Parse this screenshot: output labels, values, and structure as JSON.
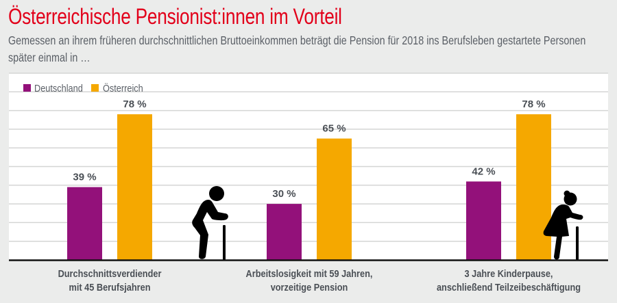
{
  "title": "Österreichische Pensionist:innen im Vorteil",
  "subtitle": "Gemessen an ihrem früheren durchschnittlichen Bruttoeinkommen beträgt die Pension für 2018 ins Berufsleben gestartete Personen später einmal in …",
  "chart_data": {
    "type": "bar",
    "categories": [
      [
        "Durchschnittsverdiender",
        "mit 45 Berufsjahren"
      ],
      [
        "Arbeitslosigkeit mit 59 Jahren,",
        "vorzeitige Pension"
      ],
      [
        "3 Jahre Kinderpause,",
        "anschließend Teilzeibeschäftigung"
      ]
    ],
    "series": [
      {
        "name": "Deutschland",
        "values": [
          39,
          30,
          42
        ],
        "labels": [
          "39 %",
          "30 %",
          "42 %"
        ],
        "color": "#93117a"
      },
      {
        "name": "Österreich",
        "values": [
          78,
          65,
          78
        ],
        "labels": [
          "78 %",
          "65 %",
          "78 %"
        ],
        "color": "#f5a800"
      }
    ],
    "ylim": [
      0,
      100
    ],
    "grid": true,
    "legend": "top-left",
    "icons": [
      "elderly-man-with-cane-icon",
      "elderly-woman-with-cane-icon"
    ]
  }
}
